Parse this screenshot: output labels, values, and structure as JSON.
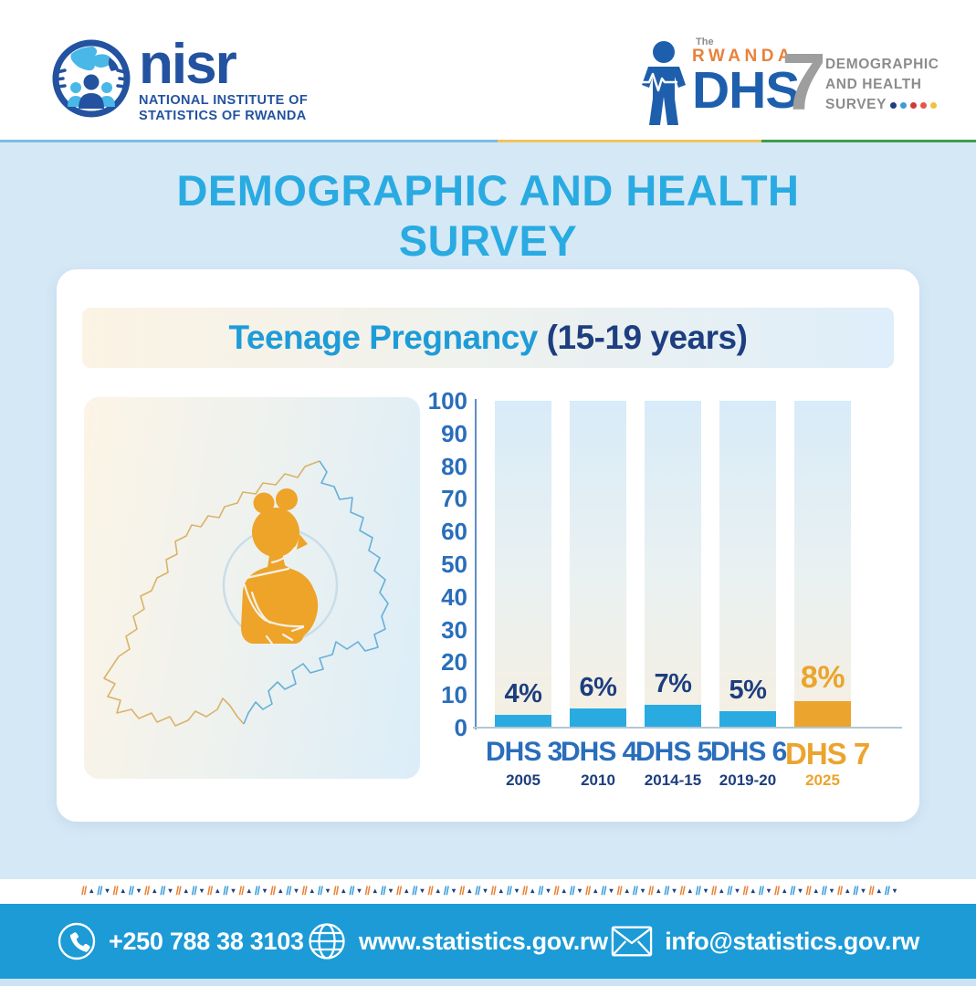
{
  "header": {
    "nisr_logo": {
      "wordmark": "nisr",
      "subtitle1": "NATIONAL INSTITUTE OF",
      "subtitle2": "STATISTICS OF RWANDA"
    },
    "dhs_logo": {
      "the": "The",
      "rwanda": "RWANDA",
      "acronym": "DHS",
      "number": "7",
      "tag1": "DEMOGRAPHIC",
      "tag2": "AND HEALTH",
      "tag3": "SURVEY",
      "dot_colors": [
        "#1D3E7F",
        "#3B9CD9",
        "#D03A36",
        "#E2574C",
        "#F2C23A"
      ]
    }
  },
  "main_title": {
    "line1": "DEMOGRAPHIC AND HEALTH",
    "line2": "SURVEY"
  },
  "chart_data": {
    "type": "bar",
    "title": "Teenage Pregnancy (15-19 years)",
    "title_main": "Teenage Pregnancy ",
    "title_range": "(15-19 years)",
    "categories": [
      "DHS 3",
      "DHS 4",
      "DHS 5",
      "DHS 6",
      "DHS 7"
    ],
    "years": [
      "2005",
      "2010",
      "2014-15",
      "2019-20",
      "2025"
    ],
    "values": [
      4,
      6,
      7,
      5,
      8
    ],
    "value_labels": [
      "4%",
      "6%",
      "7%",
      "5%",
      "8%"
    ],
    "ylim": [
      0,
      100
    ],
    "yticks": [
      0,
      10,
      20,
      30,
      40,
      50,
      60,
      70,
      80,
      90,
      100
    ],
    "grid": false,
    "legend": "none",
    "highlight_index": 4,
    "colors": {
      "bar": "#29ABE2",
      "highlight": "#EBA42D"
    }
  },
  "illustration": {
    "icon": "pregnant-teen-over-rwanda-map"
  },
  "footer": {
    "phone": "+250 788 38 3103",
    "website": "www.statistics.gov.rw",
    "email": "info@statistics.gov.rw"
  },
  "theme": {
    "accent_cyan": "#29ABE2",
    "navy": "#1D3E7F",
    "orange": "#EBA42D",
    "footer_bar": "#1C9BD7",
    "page_bg": "#D5E8F6",
    "stripe_blue": "#7CBCE4",
    "stripe_yellow": "#F0C45C",
    "stripe_green": "#3F9B4F"
  }
}
